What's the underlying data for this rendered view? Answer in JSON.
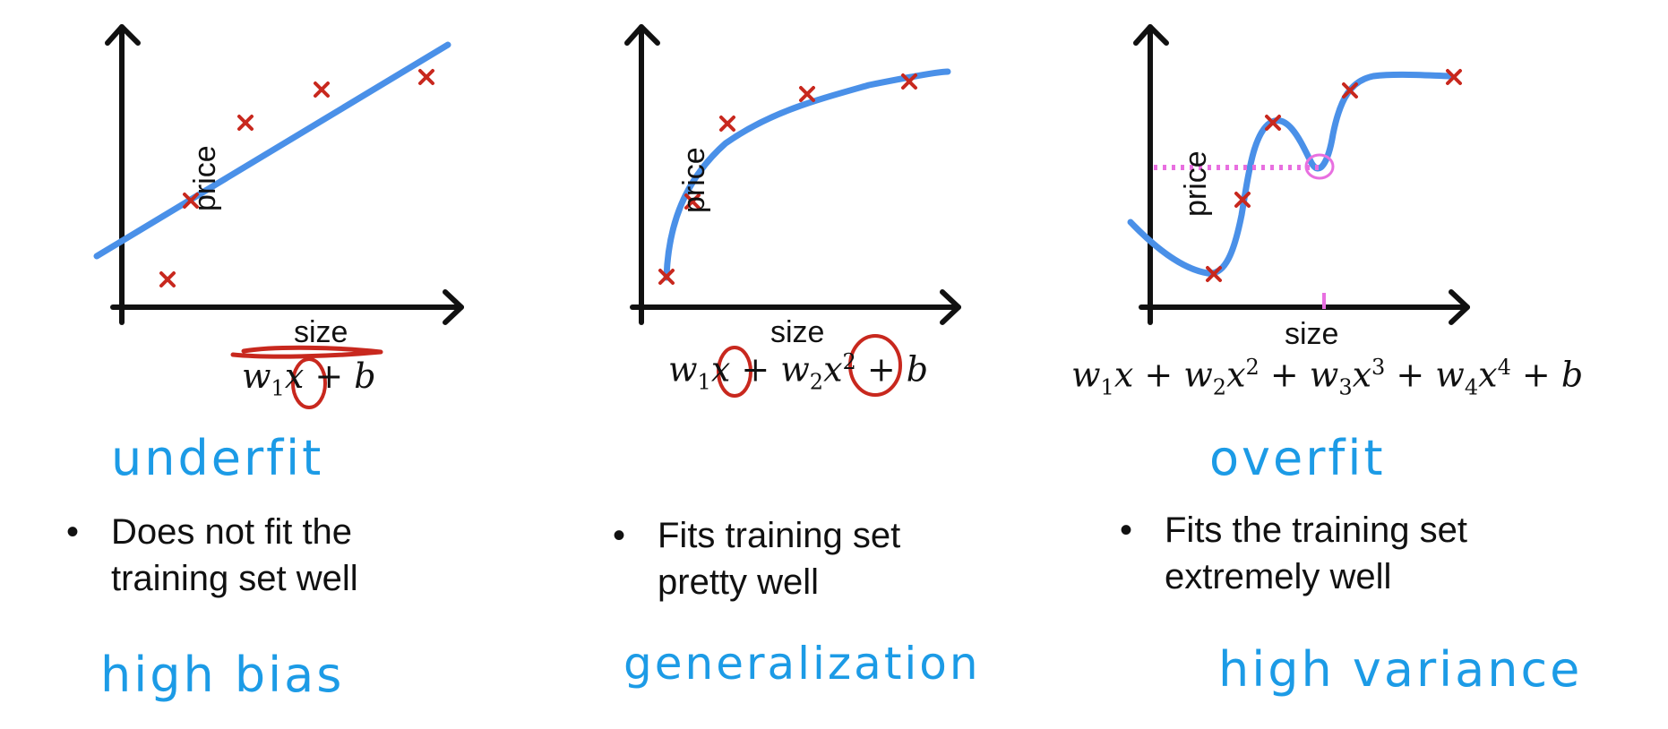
{
  "panels": [
    {
      "id": "underfit",
      "y_label": "price",
      "x_label": "size",
      "formula": {
        "t1": "w",
        "s1": "1",
        "t2": "x + b"
      },
      "title": "underfit",
      "description": [
        "Does not fit the",
        "training set well"
      ],
      "term": "high bias"
    },
    {
      "id": "just-right",
      "y_label": "price",
      "x_label": "size",
      "formula": {
        "t1": "w",
        "s1": "1",
        "t2": "x + w",
        "s2": "2",
        "t3": "x",
        "p3": "2",
        "t4": " + b"
      },
      "title": "",
      "description": [
        "Fits training set",
        "pretty well"
      ],
      "term": "generalization"
    },
    {
      "id": "overfit",
      "y_label": "price",
      "x_label": "size",
      "formula": {
        "t1": "w",
        "s1": "1",
        "t2": "x + w",
        "s2": "2",
        "t3": "x",
        "p3": "2",
        "t4": " + w",
        "s4": "3",
        "t5": "x",
        "p5": "3",
        "t6": " + w",
        "s6": "4",
        "t7": "x",
        "p7": "4",
        "t8": " + b"
      },
      "title": "overfit",
      "description": [
        "Fits the training set",
        "extremely well"
      ],
      "term": "high variance"
    }
  ],
  "colors": {
    "fit_curve": "#4a90e8",
    "data_marker": "#c8281e",
    "handwriting": "#1c9be6",
    "annotation_pink": "#e86fe0",
    "axis": "#111111"
  }
}
